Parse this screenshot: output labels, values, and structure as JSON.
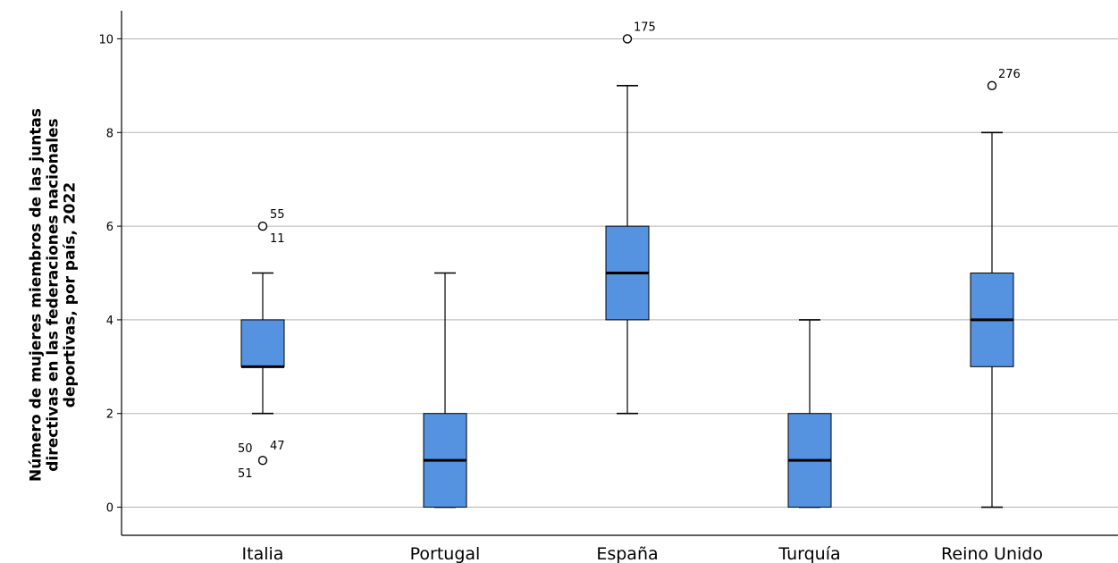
{
  "chart_data": {
    "type": "boxplot",
    "ylabel": "Número de mujeres miembros de las juntas\ndirectivas en las federaciones nacionales\ndeportivas, por país, 2022",
    "xlabel": "",
    "ylim": [
      -0.6,
      10.6
    ],
    "yticks": [
      0,
      2,
      4,
      6,
      8,
      10
    ],
    "grid": true,
    "box_color": "#5593e0",
    "categories": [
      "Italia",
      "Portugal",
      "España",
      "Turquía",
      "Reino Unido"
    ],
    "boxes": [
      {
        "category": "Italia",
        "whisker_low": 2,
        "q1": 3,
        "median": 3,
        "q3": 4,
        "whisker_high": 5,
        "outliers": [
          {
            "value": 6,
            "labels": [
              "55",
              "11"
            ]
          },
          {
            "value": 1,
            "labels": [
              "50",
              "47",
              "51"
            ]
          }
        ]
      },
      {
        "category": "Portugal",
        "whisker_low": 0,
        "q1": 0,
        "median": 1,
        "q3": 2,
        "whisker_high": 5,
        "outliers": []
      },
      {
        "category": "España",
        "whisker_low": 2,
        "q1": 4,
        "median": 5,
        "q3": 6,
        "whisker_high": 9,
        "outliers": [
          {
            "value": 10,
            "labels": [
              "175"
            ]
          }
        ]
      },
      {
        "category": "Turquía",
        "whisker_low": 0,
        "q1": 0,
        "median": 1,
        "q3": 2,
        "whisker_high": 4,
        "outliers": []
      },
      {
        "category": "Reino Unido",
        "whisker_low": 0,
        "q1": 3,
        "median": 4,
        "q3": 5,
        "whisker_high": 8,
        "outliers": [
          {
            "value": 9,
            "labels": [
              "276"
            ]
          }
        ]
      }
    ]
  }
}
